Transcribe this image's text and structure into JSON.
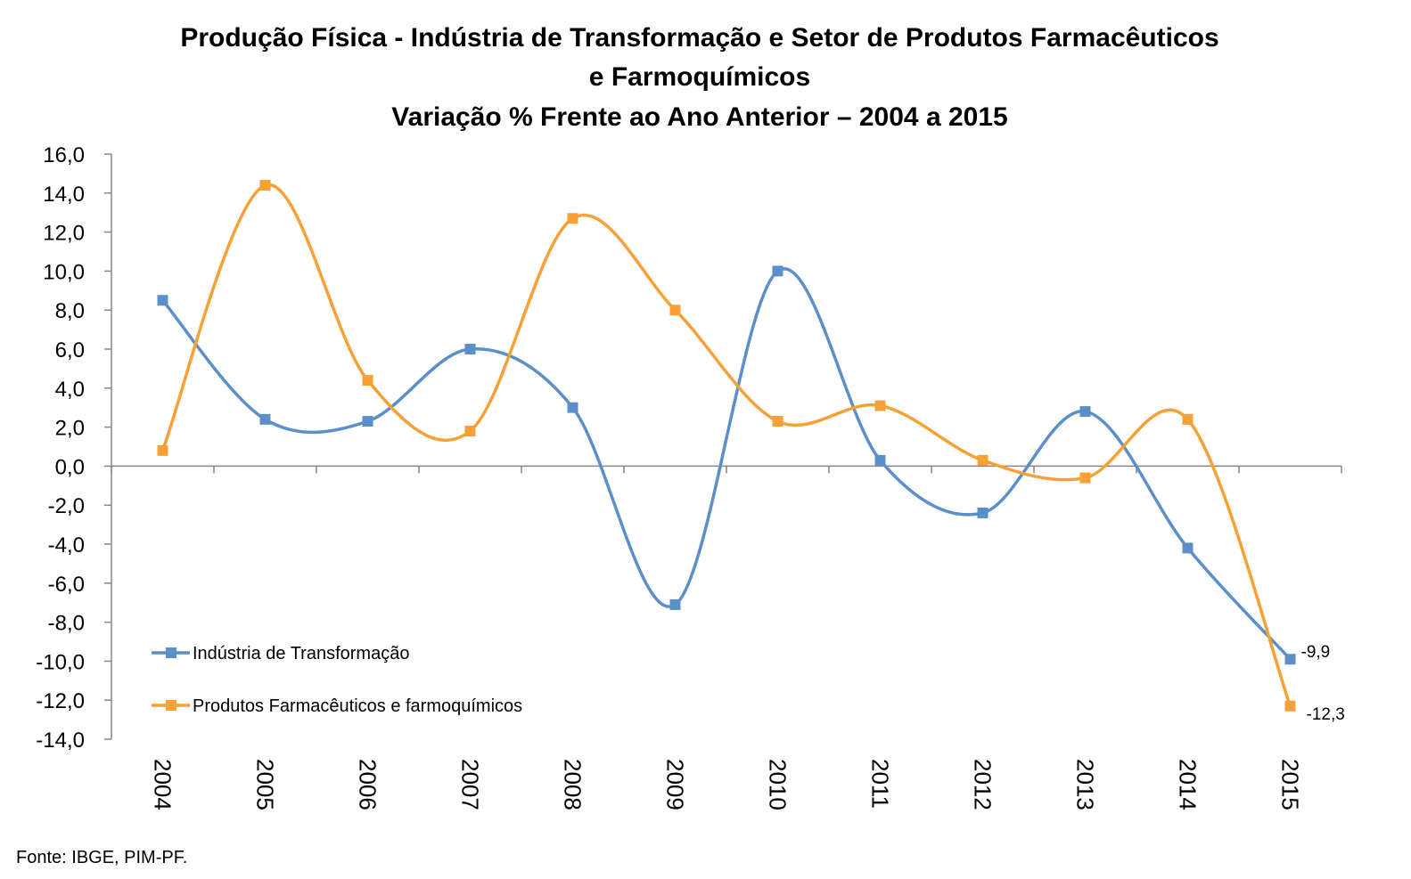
{
  "chart_data": {
    "type": "line",
    "title_lines": [
      "Produção Física - Indústria de Transformação e Setor de Produtos Farmacêuticos",
      "e Farmoquímicos",
      "Variação % Frente ao Ano Anterior – 2004 a 2015"
    ],
    "categories": [
      "2004",
      "2005",
      "2006",
      "2007",
      "2008",
      "2009",
      "2010",
      "2011",
      "2012",
      "2013",
      "2014",
      "2015"
    ],
    "ylim": [
      -14,
      16
    ],
    "ytick_step": 2,
    "ytick_labels": [
      "16,0",
      "14,0",
      "12,0",
      "10,0",
      "8,0",
      "6,0",
      "4,0",
      "2,0",
      "0,0",
      "-2,0",
      "-4,0",
      "-6,0",
      "-8,0",
      "-10,0",
      "-12,0",
      "-14,0"
    ],
    "smooth": true,
    "grid": false,
    "legend_position": "bottom-left",
    "series": [
      {
        "name": "Indústria de Transformação",
        "color": "#5b8fc9",
        "values": [
          8.5,
          2.4,
          2.3,
          6.0,
          3.0,
          -7.1,
          10.0,
          0.3,
          -2.4,
          2.8,
          -4.2,
          -9.9
        ],
        "end_label": "-9,9"
      },
      {
        "name": "Produtos Farmacêuticos e farmoquímicos",
        "color": "#f7a035",
        "values": [
          0.8,
          14.4,
          4.4,
          1.8,
          12.7,
          8.0,
          2.3,
          3.1,
          0.3,
          -0.6,
          2.4,
          -12.3
        ],
        "end_label": "-12,3"
      }
    ]
  },
  "source_text": "Fonte: IBGE, PIM-PF."
}
